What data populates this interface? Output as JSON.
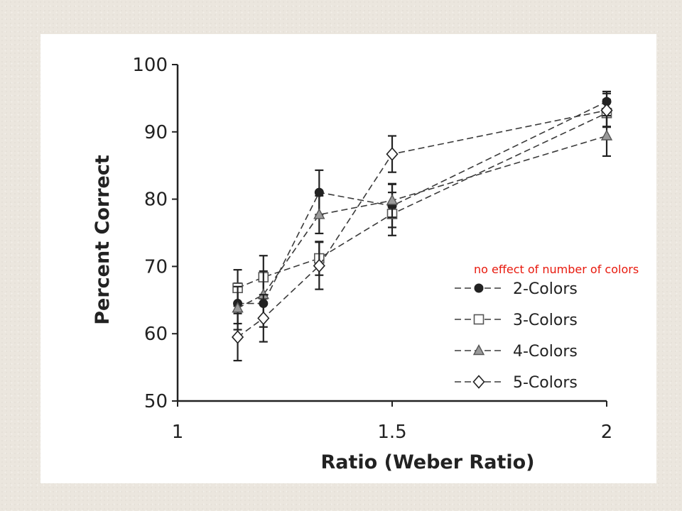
{
  "annotation": "no effect of number of colors",
  "colors": {
    "annotation": "#e8190d",
    "ink": "#222222",
    "panel": "#ffffff",
    "background": "#ebe6de"
  },
  "chart_data": {
    "type": "line",
    "xlabel": "Ratio (Weber Ratio)",
    "ylabel": "Percent Correct",
    "xlim": [
      1,
      2
    ],
    "ylim": [
      50,
      100
    ],
    "x_ticks": [
      "1",
      "1.5",
      "2"
    ],
    "y_ticks": [
      "100",
      "90",
      "80",
      "70",
      "60",
      "50"
    ],
    "grid": false,
    "legend_position": "bottom-right",
    "line_style": "dashed",
    "series": [
      {
        "name": "2-Colors",
        "marker": "filled-circle",
        "x": [
          1.14,
          1.2,
          1.33,
          1.5,
          2.0
        ],
        "y": [
          64.5,
          64.5,
          81.0,
          79.0,
          94.5
        ],
        "err": [
          3.0,
          3.5,
          3.3,
          3.2,
          1.5
        ]
      },
      {
        "name": "3-Colors",
        "marker": "open-square",
        "x": [
          1.14,
          1.2,
          1.33,
          1.5,
          2.0
        ],
        "y": [
          66.8,
          68.4,
          71.2,
          77.8,
          92.8
        ],
        "err": [
          2.7,
          3.2,
          2.5,
          3.2,
          2.0
        ]
      },
      {
        "name": "4-Colors",
        "marker": "filled-triangle",
        "x": [
          1.14,
          1.2,
          1.33,
          1.5,
          2.0
        ],
        "y": [
          63.8,
          65.8,
          77.7,
          79.8,
          89.4
        ],
        "err": [
          3.2,
          3.5,
          2.8,
          2.5,
          3.0
        ]
      },
      {
        "name": "5-Colors",
        "marker": "open-diamond",
        "x": [
          1.14,
          1.2,
          1.33,
          1.5,
          2.0
        ],
        "y": [
          59.5,
          62.3,
          70.1,
          86.7,
          93.2
        ],
        "err": [
          3.5,
          3.5,
          3.5,
          2.7,
          2.5
        ]
      }
    ]
  }
}
